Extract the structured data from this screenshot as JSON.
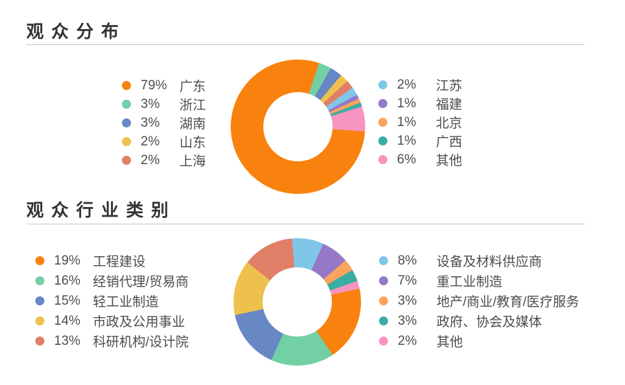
{
  "page": {
    "background": "#ffffff",
    "title_color": "#333333",
    "legend_text_color": "#4d4d4d",
    "divider_color": "#c9c9c9"
  },
  "sections": [
    {
      "title": "观众分布"
    },
    {
      "title": "观众行业类别"
    }
  ],
  "chart_data": [
    {
      "type": "pie",
      "title": "观众分布",
      "donut": true,
      "inner_radius_ratio": 0.52,
      "start_angle_deg": 94,
      "legend_position": "both-sides",
      "legend_split": 5,
      "slices": [
        {
          "label": "广东",
          "pct": 79,
          "pct_label": "79%",
          "color": "#F8820D"
        },
        {
          "label": "浙江",
          "pct": 3,
          "pct_label": "3%",
          "color": "#72D0A4"
        },
        {
          "label": "湖南",
          "pct": 3,
          "pct_label": "3%",
          "color": "#6787C5"
        },
        {
          "label": "山东",
          "pct": 2,
          "pct_label": "2%",
          "color": "#EEC04D"
        },
        {
          "label": "上海",
          "pct": 2,
          "pct_label": "2%",
          "color": "#E07E68"
        },
        {
          "label": "江苏",
          "pct": 2,
          "pct_label": "2%",
          "color": "#7FC6E8"
        },
        {
          "label": "福建",
          "pct": 1,
          "pct_label": "1%",
          "color": "#9678C8"
        },
        {
          "label": "北京",
          "pct": 1,
          "pct_label": "1%",
          "color": "#FAA45F"
        },
        {
          "label": "广西",
          "pct": 1,
          "pct_label": "1%",
          "color": "#3BAEA3"
        },
        {
          "label": "其他",
          "pct": 6,
          "pct_label": "6%",
          "color": "#F894C0"
        }
      ]
    },
    {
      "type": "pie",
      "title": "观众行业类别",
      "donut": true,
      "inner_radius_ratio": 0.54,
      "start_angle_deg": 78,
      "legend_position": "both-sides",
      "legend_split": 5,
      "slices": [
        {
          "label": "工程建设",
          "pct": 19,
          "pct_label": "19%",
          "color": "#F8820D"
        },
        {
          "label": "经销代理/贸易商",
          "pct": 16,
          "pct_label": "16%",
          "color": "#72D0A4"
        },
        {
          "label": "轻工业制造",
          "pct": 15,
          "pct_label": "15%",
          "color": "#6787C5"
        },
        {
          "label": "市政及公用事业",
          "pct": 14,
          "pct_label": "14%",
          "color": "#EEC04D"
        },
        {
          "label": "科研机构/设计院",
          "pct": 13,
          "pct_label": "13%",
          "color": "#E07E68"
        },
        {
          "label": "设备及材料供应商",
          "pct": 8,
          "pct_label": "8%",
          "color": "#7FC6E8"
        },
        {
          "label": "重工业制造",
          "pct": 7,
          "pct_label": "7%",
          "color": "#9678C8"
        },
        {
          "label": "地产/商业/教育/医疗服务",
          "pct": 3,
          "pct_label": "3%",
          "color": "#FAA45F"
        },
        {
          "label": "政府、协会及媒体",
          "pct": 3,
          "pct_label": "3%",
          "color": "#3BAEA3"
        },
        {
          "label": "其他",
          "pct": 2,
          "pct_label": "2%",
          "color": "#F894C0"
        }
      ]
    }
  ]
}
